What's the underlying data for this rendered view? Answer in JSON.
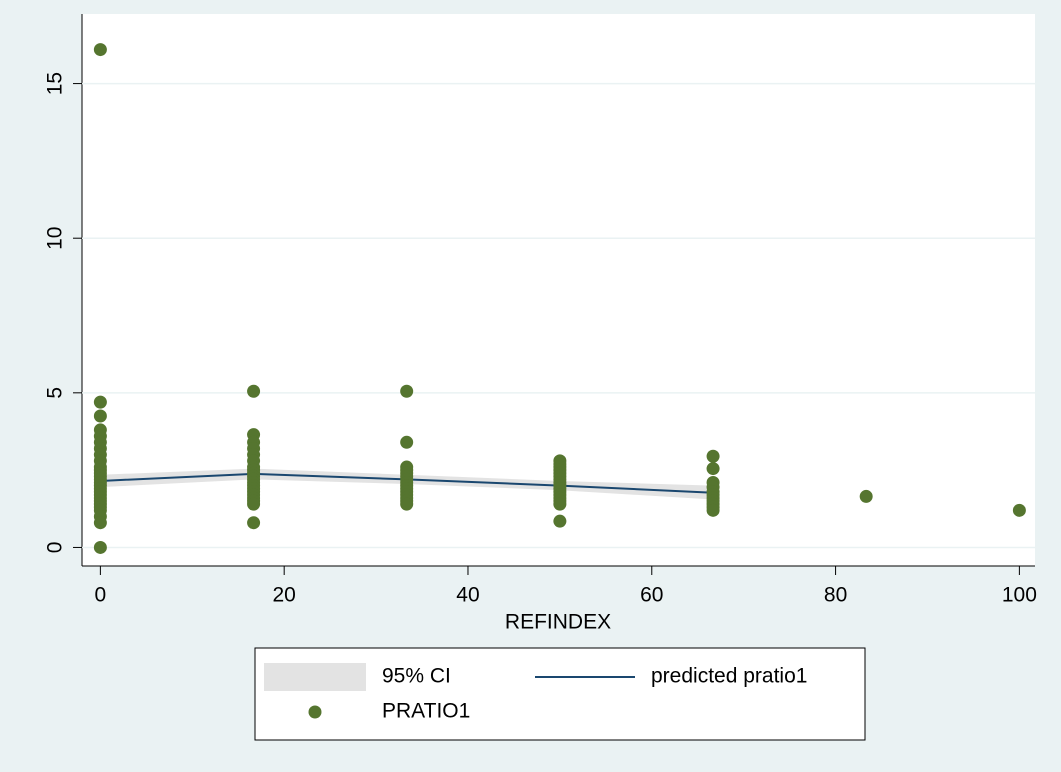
{
  "chart_data": {
    "type": "scatter",
    "x_label": "REFINDEX",
    "xlim": [
      -2,
      101.7
    ],
    "ylim": [
      -0.6,
      17.25
    ],
    "xticks": [
      0,
      20,
      40,
      60,
      80,
      100
    ],
    "yticks": [
      0,
      5,
      10,
      15
    ],
    "grid": true,
    "series": [
      {
        "name": "95% CI",
        "type": "area",
        "color": "#d9d9d9",
        "x": [
          0,
          16.67,
          33.33,
          50,
          66.67
        ],
        "lower": [
          1.95,
          2.2,
          2.05,
          1.85,
          1.55
        ],
        "upper": [
          2.35,
          2.55,
          2.35,
          2.15,
          2.0
        ]
      },
      {
        "name": "predicted pratio1",
        "type": "line",
        "color": "#1a476f",
        "x": [
          0,
          16.67,
          33.33,
          50,
          66.67
        ],
        "values": [
          2.15,
          2.38,
          2.2,
          2.0,
          1.77
        ]
      },
      {
        "name": "PRATIO1",
        "type": "scatter",
        "color": "#55752f",
        "x": [
          0,
          0,
          0,
          0,
          0,
          0,
          0,
          0,
          0,
          0,
          0,
          0,
          0,
          0,
          0,
          0,
          0,
          0,
          0,
          0,
          0,
          0,
          0,
          0,
          0,
          0,
          0,
          16.67,
          16.67,
          16.67,
          16.67,
          16.67,
          16.67,
          16.67,
          16.67,
          16.67,
          16.67,
          16.67,
          16.67,
          16.67,
          16.67,
          16.67,
          16.67,
          16.67,
          16.67,
          16.67,
          16.67,
          33.33,
          33.33,
          33.33,
          33.33,
          33.33,
          33.33,
          33.33,
          33.33,
          33.33,
          33.33,
          33.33,
          33.33,
          33.33,
          33.33,
          33.33,
          50,
          50,
          50,
          50,
          50,
          50,
          50,
          50,
          50,
          50,
          50,
          50,
          50,
          50,
          50,
          50,
          66.67,
          66.67,
          66.67,
          66.67,
          66.67,
          66.67,
          66.67,
          66.67,
          66.67,
          66.67,
          66.67,
          83.33,
          100
        ],
        "values": [
          16.1,
          4.7,
          4.25,
          3.8,
          3.6,
          3.4,
          3.2,
          3,
          2.8,
          2.6,
          2.5,
          2.4,
          2.3,
          2.2,
          2.1,
          2,
          1.9,
          1.8,
          1.7,
          1.6,
          1.5,
          1.4,
          1.3,
          1.2,
          1,
          0.8,
          0,
          5.05,
          3.65,
          3.4,
          3.2,
          3,
          2.8,
          2.6,
          2.5,
          2.4,
          2.3,
          2.2,
          2.1,
          2,
          1.9,
          1.8,
          1.7,
          1.6,
          1.5,
          1.4,
          0.8,
          5.05,
          3.4,
          2.6,
          2.5,
          2.4,
          2.3,
          2.2,
          2.1,
          2,
          1.9,
          1.8,
          1.7,
          1.6,
          1.5,
          1.4,
          2.8,
          2.7,
          2.6,
          2.5,
          2.4,
          2.3,
          2.2,
          2.1,
          2,
          1.9,
          1.8,
          1.7,
          1.6,
          1.5,
          1.4,
          0.85,
          2.95,
          2.55,
          2.1,
          1.95,
          1.8,
          1.7,
          1.6,
          1.5,
          1.4,
          1.3,
          1.2,
          1.65,
          1.2
        ]
      }
    ]
  }
}
